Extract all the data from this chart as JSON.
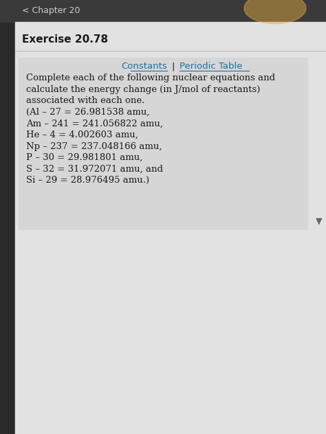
{
  "page_bg": "#e0e0e0",
  "header_text": "< Chapter 20",
  "exercise_text": "Exercise 20.78",
  "constants_label": "Constants",
  "pipe_label": "|",
  "periodic_label": "Periodic Table",
  "link_color": "#1a6fa0",
  "body_lines": [
    "Complete each of the following nuclear equations and",
    "calculate the energy change (in J/mol of reactants)",
    "associated with each one.",
    "(Al – 27 = 26.981538 amu,",
    "Am – 241 = 241.056822 amu,",
    "He – 4 = 4.002603 amu,",
    "Np – 237 = 237.048166 amu,",
    "P – 30 = 29.981801 amu,",
    "S – 32 = 31.972071 amu, and",
    "Si – 29 = 28.976495 amu.)"
  ],
  "text_color": "#1a1a1a",
  "font_size_header": 9,
  "font_size_exercise": 11,
  "font_size_body": 9.5,
  "font_size_links": 9.5
}
